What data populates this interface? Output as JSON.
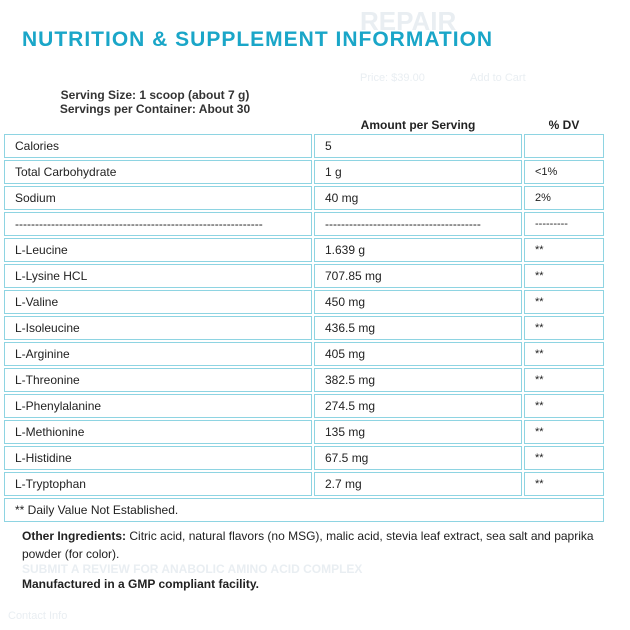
{
  "background": {
    "brand": "REPAIR",
    "price": "Price: $39.00",
    "cart": "Add to Cart",
    "review": "SUBMIT A REVIEW FOR ANABOLIC AMINO ACID COMPLEX",
    "contact": "Contact Info"
  },
  "header": {
    "title": "NUTRITION & SUPPLEMENT INFORMATION",
    "serving_size": "Serving Size: 1 scoop (about 7 g)",
    "servings": "Servings per Container: About 30"
  },
  "table": {
    "columns": [
      "Amount per Serving",
      "% DV"
    ],
    "rows": [
      [
        "Calories",
        "5"
      ],
      [
        "Total Carbohydrate",
        "1 g",
        "<1%"
      ],
      [
        "Sodium",
        "40 mg",
        "2%"
      ],
      [
        "--------------------------------------------------------------",
        "---------------------------------------",
        "---------"
      ],
      [
        "L-Leucine",
        "1.639 g",
        "**"
      ],
      [
        "L-Lysine HCL",
        "707.85 mg",
        "**"
      ],
      [
        "L-Valine",
        "450 mg",
        "**"
      ],
      [
        "L-Isoleucine",
        "436.5 mg",
        "**"
      ],
      [
        "L-Arginine",
        "405 mg",
        "**"
      ],
      [
        "L-Threonine",
        "382.5 mg",
        "**"
      ],
      [
        "L-Phenylalanine",
        "274.5 mg",
        "**"
      ],
      [
        "L-Methionine",
        "135 mg",
        "**"
      ],
      [
        "L-Histidine",
        "67.5 mg",
        "**"
      ],
      [
        "L-Tryptophan",
        "2.7 mg",
        "**"
      ]
    ],
    "footnote": "** Daily Value Not Established."
  },
  "footer": {
    "ingredients_label": "Other Ingredients:",
    "ingredients": "Citric acid, natural flavors (no MSG), malic acid, stevia leaf extract, sea salt and paprika powder (for color).",
    "manufactured": "Manufactured in a GMP compliant facility."
  }
}
